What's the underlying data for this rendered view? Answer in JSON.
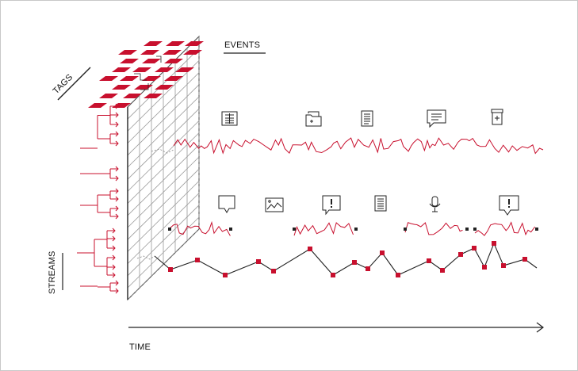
{
  "labels": {
    "tags": "TAGS",
    "events": "EVENTS",
    "streams": "STREAMS",
    "time": "TIME"
  },
  "colors": {
    "accent": "#c8102e",
    "ink": "#222222",
    "grid": "#9a9a9a",
    "frame": "#c8c8c8"
  },
  "event_icons": [
    {
      "name": "news-article-icon",
      "row": "top"
    },
    {
      "name": "folder-image-icon",
      "row": "top"
    },
    {
      "name": "document-icon",
      "row": "top"
    },
    {
      "name": "chat-message-icon",
      "row": "top"
    },
    {
      "name": "medicine-jar-icon",
      "row": "top"
    },
    {
      "name": "speech-bubble-icon",
      "row": "middle"
    },
    {
      "name": "image-chart-icon",
      "row": "middle"
    },
    {
      "name": "alert-message-icon",
      "row": "middle"
    },
    {
      "name": "text-document-icon",
      "row": "middle"
    },
    {
      "name": "microphone-icon",
      "row": "middle"
    },
    {
      "name": "alert-bubble-icon",
      "row": "middle"
    }
  ]
}
